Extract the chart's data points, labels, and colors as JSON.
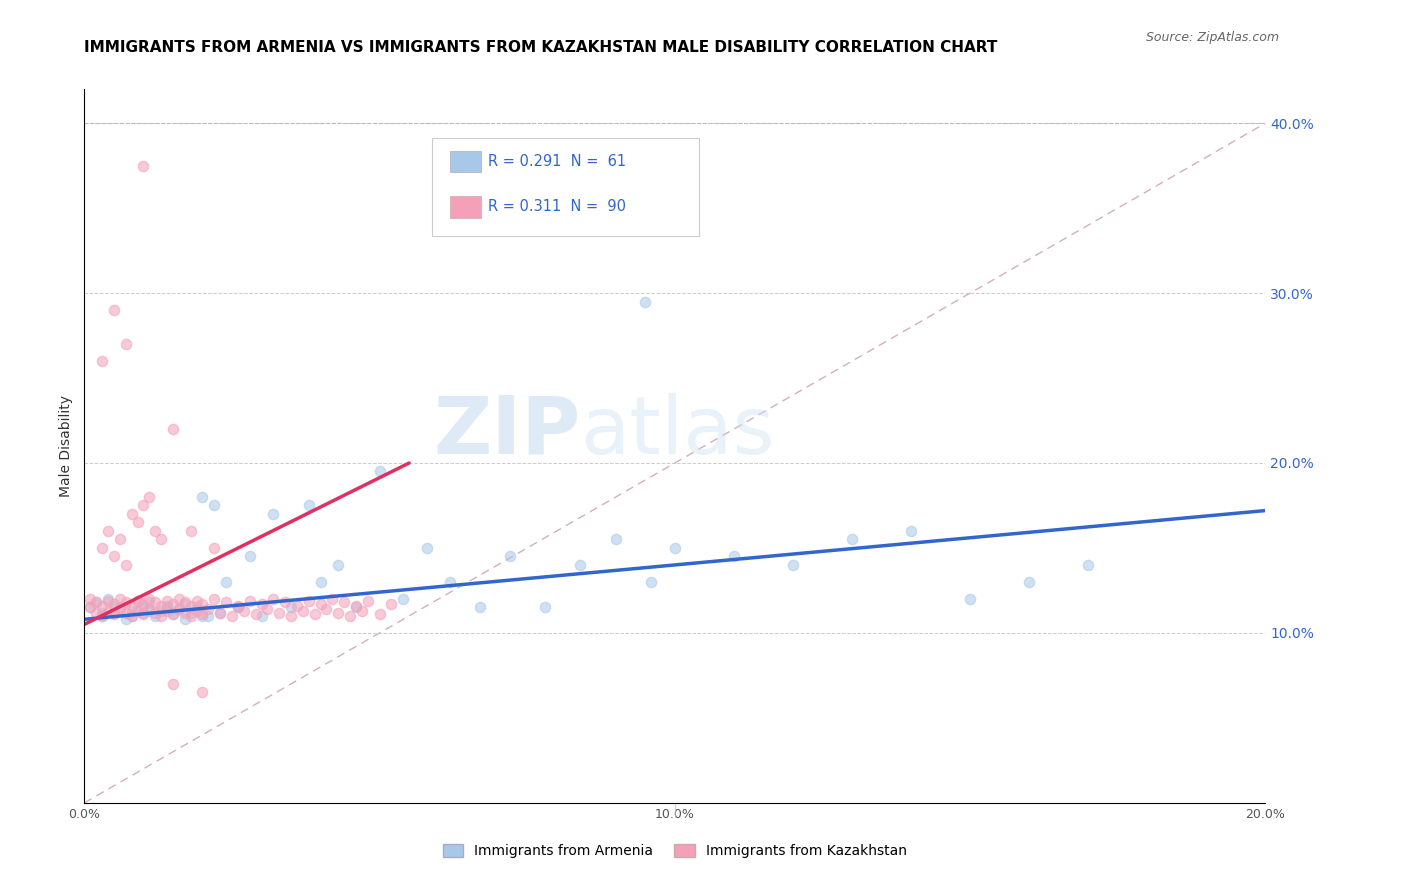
{
  "title": "IMMIGRANTS FROM ARMENIA VS IMMIGRANTS FROM KAZAKHSTAN MALE DISABILITY CORRELATION CHART",
  "source": "Source: ZipAtlas.com",
  "ylabel": "Male Disability",
  "legend_label_1": "Immigrants from Armenia",
  "legend_label_2": "Immigrants from Kazakhstan",
  "r1": 0.291,
  "n1": 61,
  "r2": 0.311,
  "n2": 90,
  "color1": "#a8c8e8",
  "color2": "#f4a0b8",
  "line1_color": "#3366cc",
  "line2_color": "#e03060",
  "ref_line_color": "#d0a0a8",
  "xlim": [
    0.0,
    0.2
  ],
  "ylim": [
    0.0,
    0.42
  ],
  "watermark_zip": "ZIP",
  "watermark_atlas": "atlas",
  "title_fontsize": 11,
  "scatter_size": 55,
  "scatter_alpha": 0.55,
  "scatter_edgewidth": 1.0,
  "armenia_x": [
    0.001,
    0.002,
    0.003,
    0.004,
    0.005,
    0.006,
    0.007,
    0.008,
    0.009,
    0.01,
    0.01,
    0.011,
    0.012,
    0.013,
    0.014,
    0.015,
    0.016,
    0.017,
    0.018,
    0.019,
    0.02,
    0.021,
    0.022,
    0.024,
    0.026,
    0.028,
    0.03,
    0.032,
    0.035,
    0.038,
    0.04,
    0.043,
    0.046,
    0.05,
    0.054,
    0.058,
    0.062,
    0.067,
    0.072,
    0.078,
    0.084,
    0.09,
    0.096,
    0.1,
    0.11,
    0.12,
    0.13,
    0.14,
    0.15,
    0.16,
    0.17,
    0.003,
    0.005,
    0.008,
    0.011,
    0.014,
    0.017,
    0.02,
    0.023,
    0.026,
    0.095
  ],
  "armenia_y": [
    0.115,
    0.118,
    0.11,
    0.12,
    0.112,
    0.115,
    0.108,
    0.113,
    0.119,
    0.112,
    0.115,
    0.118,
    0.11,
    0.113,
    0.116,
    0.111,
    0.114,
    0.117,
    0.112,
    0.115,
    0.18,
    0.11,
    0.175,
    0.13,
    0.115,
    0.145,
    0.11,
    0.17,
    0.115,
    0.175,
    0.13,
    0.14,
    0.115,
    0.195,
    0.12,
    0.15,
    0.13,
    0.115,
    0.145,
    0.115,
    0.14,
    0.155,
    0.13,
    0.15,
    0.145,
    0.14,
    0.155,
    0.16,
    0.12,
    0.13,
    0.14,
    0.112,
    0.115,
    0.11,
    0.113,
    0.115,
    0.108,
    0.11,
    0.112,
    0.115,
    0.295
  ],
  "kazakhstan_x": [
    0.001,
    0.001,
    0.002,
    0.002,
    0.003,
    0.003,
    0.004,
    0.004,
    0.005,
    0.005,
    0.006,
    0.006,
    0.007,
    0.007,
    0.008,
    0.008,
    0.009,
    0.009,
    0.01,
    0.01,
    0.011,
    0.011,
    0.012,
    0.012,
    0.013,
    0.013,
    0.014,
    0.014,
    0.015,
    0.015,
    0.016,
    0.016,
    0.017,
    0.017,
    0.018,
    0.018,
    0.019,
    0.019,
    0.02,
    0.02,
    0.021,
    0.022,
    0.023,
    0.024,
    0.025,
    0.026,
    0.027,
    0.028,
    0.029,
    0.03,
    0.031,
    0.032,
    0.033,
    0.034,
    0.035,
    0.036,
    0.037,
    0.038,
    0.039,
    0.04,
    0.041,
    0.042,
    0.043,
    0.044,
    0.045,
    0.046,
    0.047,
    0.048,
    0.05,
    0.052,
    0.003,
    0.004,
    0.005,
    0.006,
    0.007,
    0.008,
    0.009,
    0.01,
    0.011,
    0.012,
    0.013,
    0.015,
    0.018,
    0.022,
    0.003,
    0.005,
    0.007,
    0.01,
    0.015,
    0.02
  ],
  "kazakhstan_y": [
    0.115,
    0.12,
    0.112,
    0.118,
    0.11,
    0.116,
    0.113,
    0.119,
    0.111,
    0.117,
    0.114,
    0.12,
    0.112,
    0.118,
    0.11,
    0.116,
    0.113,
    0.119,
    0.111,
    0.117,
    0.114,
    0.12,
    0.112,
    0.118,
    0.11,
    0.116,
    0.113,
    0.119,
    0.111,
    0.117,
    0.114,
    0.12,
    0.112,
    0.118,
    0.11,
    0.116,
    0.113,
    0.119,
    0.111,
    0.117,
    0.114,
    0.12,
    0.112,
    0.118,
    0.11,
    0.116,
    0.113,
    0.119,
    0.111,
    0.117,
    0.114,
    0.12,
    0.112,
    0.118,
    0.11,
    0.116,
    0.113,
    0.119,
    0.111,
    0.117,
    0.114,
    0.12,
    0.112,
    0.118,
    0.11,
    0.116,
    0.113,
    0.119,
    0.111,
    0.117,
    0.15,
    0.16,
    0.145,
    0.155,
    0.14,
    0.17,
    0.165,
    0.175,
    0.18,
    0.16,
    0.155,
    0.22,
    0.16,
    0.15,
    0.26,
    0.29,
    0.27,
    0.375,
    0.07,
    0.065
  ]
}
